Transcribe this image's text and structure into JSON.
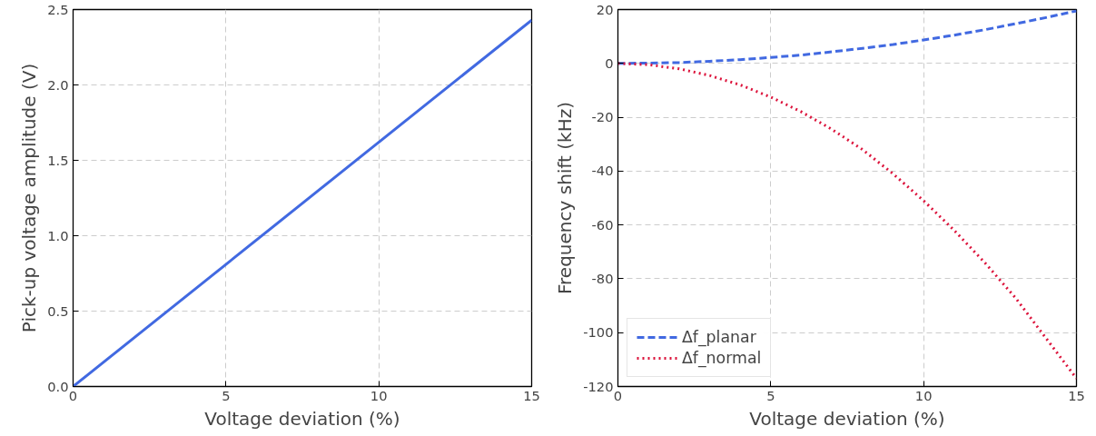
{
  "chart_data": [
    {
      "type": "line",
      "xlabel": "Voltage deviation (%)",
      "ylabel": "Pick-up voltage amplitude (V)",
      "x": [
        0,
        15
      ],
      "series": [
        {
          "color": "#4169e1",
          "values": [
            0,
            2.43
          ]
        }
      ],
      "xlim": [
        0,
        15
      ],
      "ylim": [
        0,
        2.5
      ],
      "xticks": [
        0,
        5,
        10,
        15
      ],
      "yticks": [
        {
          "value": 0,
          "label": "0.0"
        },
        0.5,
        {
          "value": 1,
          "label": "1.0"
        },
        1.5,
        {
          "value": 2,
          "label": "2.0"
        },
        2.5
      ],
      "grid": true,
      "line_style": "solid",
      "legend": false
    },
    {
      "type": "line",
      "xlabel": "Voltage deviation (%)",
      "ylabel": "Frequency shift (kHz)",
      "x": [
        0,
        1,
        2,
        3,
        4,
        5,
        6,
        7,
        8,
        9,
        10,
        11,
        12,
        13,
        14,
        15
      ],
      "series": [
        {
          "name": "Δf_planar",
          "color": "#4169e1",
          "line_style": "dashed",
          "values": [
            0,
            0.1,
            0.3,
            0.8,
            1.4,
            2.2,
            3.1,
            4.3,
            5.6,
            7.0,
            8.7,
            10.5,
            12.5,
            14.7,
            17.0,
            19.5
          ]
        },
        {
          "name": "Δf_normal",
          "color": "#dc143c",
          "line_style": "dotted",
          "values": [
            0,
            -0.5,
            -2,
            -4.5,
            -8,
            -12.5,
            -18,
            -24.5,
            -32,
            -41,
            -51,
            -62,
            -74,
            -87,
            -102,
            -117
          ]
        }
      ],
      "xlim": [
        0,
        15
      ],
      "ylim": [
        -120,
        20
      ],
      "xticks": [
        0,
        5,
        10,
        15
      ],
      "yticks": [
        -120,
        -100,
        -80,
        -60,
        -40,
        -20,
        0,
        20
      ],
      "grid": true,
      "legend": "bottom left"
    }
  ]
}
